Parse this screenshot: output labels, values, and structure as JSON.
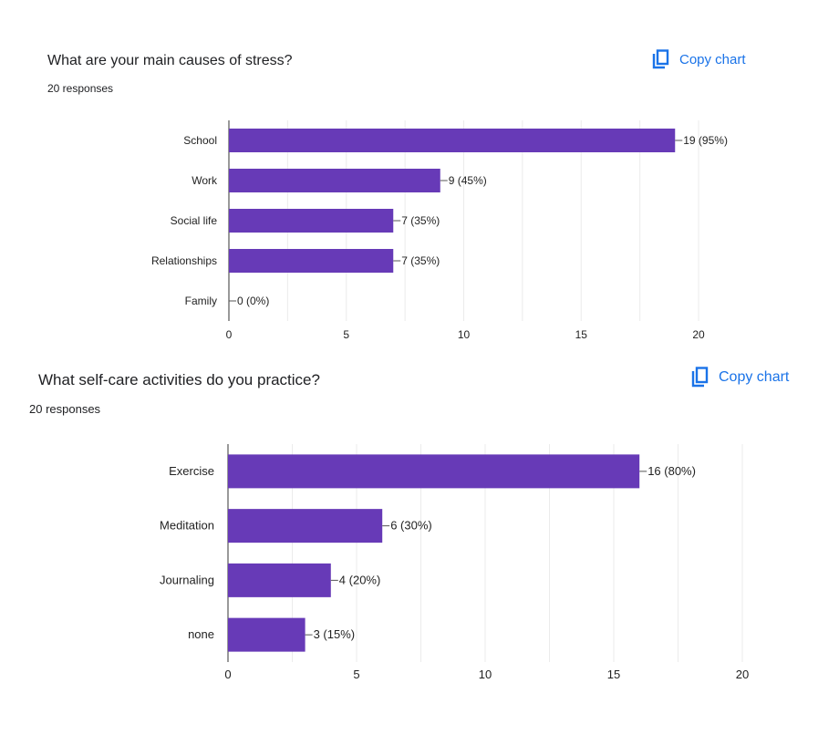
{
  "colors": {
    "bar": "#673ab7",
    "accent": "#1a73e8",
    "grid": "#ebebeb",
    "axis": "#333333"
  },
  "copy_icon": "copy-icon",
  "chart_data": [
    {
      "type": "bar",
      "orientation": "horizontal",
      "title": "What are your main causes of stress?",
      "subtitle": "20 responses",
      "copy_label": "Copy chart",
      "categories": [
        "School",
        "Work",
        "Social life",
        "Relationships",
        "Family"
      ],
      "values": [
        19,
        9,
        7,
        7,
        0
      ],
      "data_labels": [
        "19 (95%)",
        "9 (45%)",
        "7 (35%)",
        "7 (35%)",
        "0 (0%)"
      ],
      "xticks": [
        0,
        5,
        10,
        15,
        20
      ],
      "xlim": [
        0,
        20
      ],
      "grid": true
    },
    {
      "type": "bar",
      "orientation": "horizontal",
      "title": "What self-care activities do you practice?",
      "subtitle": "20 responses",
      "copy_label": "Copy chart",
      "categories": [
        "Exercise",
        "Meditation",
        "Journaling",
        "none"
      ],
      "values": [
        16,
        6,
        4,
        3
      ],
      "data_labels": [
        "16 (80%)",
        "6 (30%)",
        "4 (20%)",
        "3 (15%)"
      ],
      "xticks": [
        0,
        5,
        10,
        15,
        20
      ],
      "xlim": [
        0,
        20
      ],
      "grid": true
    }
  ]
}
